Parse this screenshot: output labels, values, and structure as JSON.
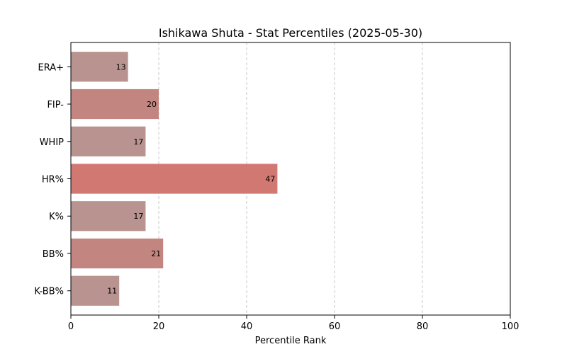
{
  "chart_data": {
    "type": "bar",
    "orientation": "horizontal",
    "title": "Ishikawa Shuta - Stat Percentiles (2025-05-30)",
    "xlabel": "Percentile Rank",
    "ylabel": "",
    "xlim": [
      0,
      100
    ],
    "xticks": [
      0,
      20,
      40,
      60,
      80,
      100
    ],
    "grid": "x dashed",
    "categories": [
      "ERA+",
      "FIP-",
      "WHIP",
      "HR%",
      "K%",
      "BB%",
      "K-BB%"
    ],
    "values": [
      13,
      20,
      17,
      47,
      17,
      21,
      11
    ],
    "colors": [
      "#b8938f",
      "#c3857f",
      "#b8938f",
      "#d27873",
      "#b8938f",
      "#c3857f",
      "#b8938f"
    ]
  }
}
